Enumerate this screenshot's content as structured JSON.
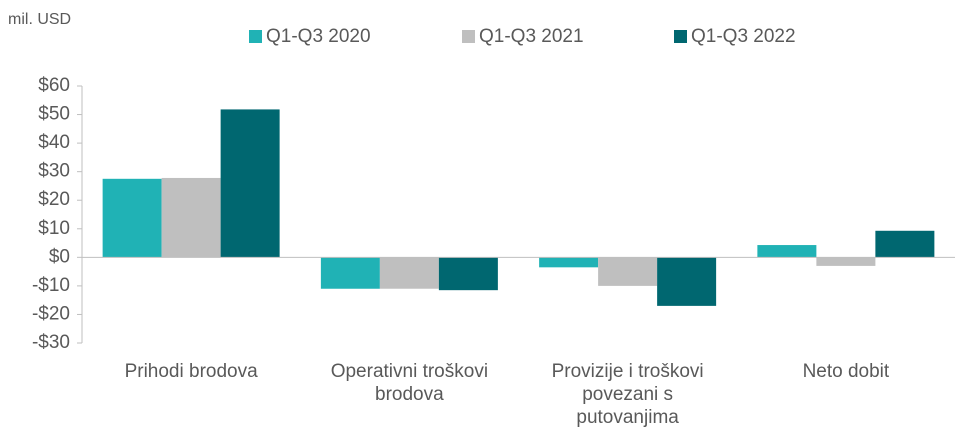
{
  "chart_data": {
    "type": "bar",
    "unit_label": "mil. USD",
    "categories": [
      "Prihodi brodova",
      "Operativni troškovi brodova",
      "Provizije i troškovi povezani s putovanjima",
      "Neto dobit"
    ],
    "series": [
      {
        "name": "Q1-Q3 2020",
        "color": "#20b2b5",
        "values": [
          27.5,
          -11,
          -3.5,
          4.3
        ]
      },
      {
        "name": "Q1-Q3 2021",
        "color": "#bfbfbf",
        "values": [
          27.8,
          -11,
          -10,
          -3
        ]
      },
      {
        "name": "Q1-Q3 2022",
        "color": "#006770",
        "values": [
          51.8,
          -11.5,
          -17,
          9.3
        ]
      }
    ],
    "ylim": [
      -30,
      60
    ],
    "yticks": [
      {
        "value": -30,
        "label": "-$30"
      },
      {
        "value": -20,
        "label": "-$20"
      },
      {
        "value": -10,
        "label": "-$10"
      },
      {
        "value": 0,
        "label": "$0"
      },
      {
        "value": 10,
        "label": "$10"
      },
      {
        "value": 20,
        "label": "$20"
      },
      {
        "value": 30,
        "label": "$30"
      },
      {
        "value": 40,
        "label": "$40"
      },
      {
        "value": 50,
        "label": "$50"
      },
      {
        "value": 60,
        "label": "$60"
      }
    ],
    "legend": "top",
    "grid": false
  }
}
